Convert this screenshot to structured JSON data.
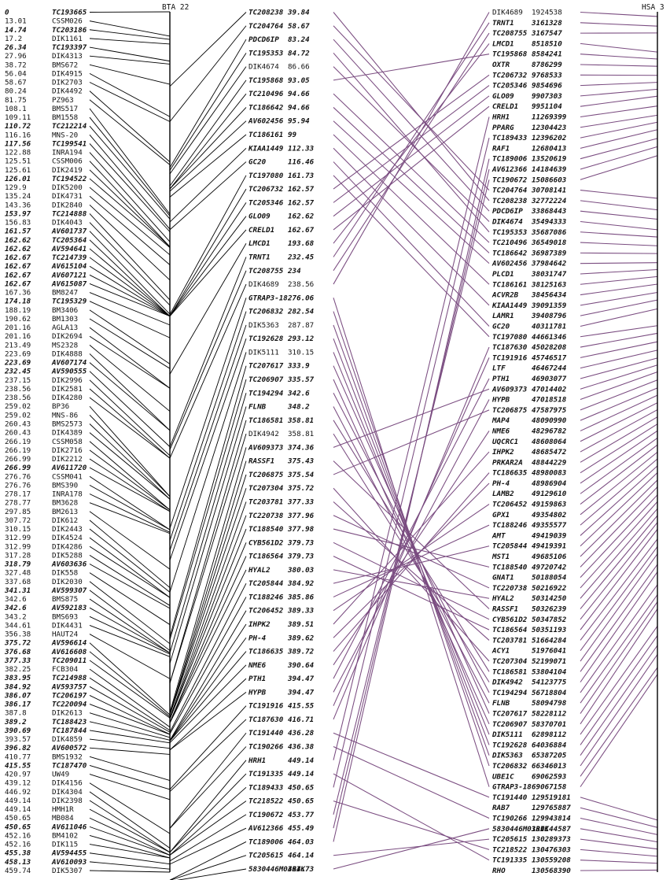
{
  "headers": {
    "bta22": "BTA 22",
    "hsa3": "HSA 3"
  },
  "col1": [
    [
      "0",
      "TC193665",
      1
    ],
    [
      "13.01",
      "CSSM026",
      0
    ],
    [
      "14.74",
      "TC203186",
      1
    ],
    [
      "17.2",
      "DIK1161",
      0
    ],
    [
      "26.34",
      "TC193397",
      1
    ],
    [
      "27.96",
      "DIK4313",
      0
    ],
    [
      "38.72",
      "BMS672",
      0
    ],
    [
      "56.04",
      "DIK4915",
      0
    ],
    [
      "58.67",
      "DIK2703",
      0
    ],
    [
      "80.24",
      "DIK4492",
      0
    ],
    [
      "81.75",
      "PZ963",
      0
    ],
    [
      "108.1",
      "BMS517",
      0
    ],
    [
      "109.11",
      "BM1558",
      0
    ],
    [
      "110.72",
      "TC212214",
      1
    ],
    [
      "116.16",
      "MNS-20",
      0
    ],
    [
      "117.56",
      "TC199541",
      1
    ],
    [
      "122.88",
      "INRA194",
      0
    ],
    [
      "125.51",
      "CSSM006",
      0
    ],
    [
      "125.61",
      "DIK2419",
      0
    ],
    [
      "126.01",
      "TC194522",
      1
    ],
    [
      "129.9",
      "DIK5200",
      0
    ],
    [
      "135.24",
      "DIK4731",
      0
    ],
    [
      "143.36",
      "DIK2840",
      0
    ],
    [
      "153.97",
      "TC214888",
      1
    ],
    [
      "156.83",
      "DIK4043",
      0
    ],
    [
      "161.57",
      "AV601737",
      1
    ],
    [
      "162.62",
      "TC205364",
      1
    ],
    [
      "162.62",
      "AV594641",
      1
    ],
    [
      "162.67",
      "TC214739",
      1
    ],
    [
      "162.67",
      "AV615104",
      1
    ],
    [
      "162.67",
      "AV607121",
      1
    ],
    [
      "162.67",
      "AV615087",
      1
    ],
    [
      "167.36",
      "BM8247",
      0
    ],
    [
      "174.18",
      "TC195329",
      1
    ],
    [
      "188.19",
      "BM3406",
      0
    ],
    [
      "190.62",
      "BM1303",
      0
    ],
    [
      "201.16",
      "AGLA13",
      0
    ],
    [
      "201.16",
      "DIK2694",
      0
    ],
    [
      "213.49",
      "MS2328",
      0
    ],
    [
      "223.69",
      "DIK4888",
      0
    ],
    [
      "223.69",
      "AV607174",
      1
    ],
    [
      "232.45",
      "AV590555",
      1
    ],
    [
      "237.15",
      "DIK2996",
      0
    ],
    [
      "238.56",
      "DIK2581",
      0
    ],
    [
      "238.56",
      "DIK4280",
      0
    ],
    [
      "259.02",
      "BP36",
      0
    ],
    [
      "259.02",
      "MNS-86",
      0
    ],
    [
      "260.43",
      "BMS2573",
      0
    ],
    [
      "260.43",
      "DIK4389",
      0
    ],
    [
      "266.19",
      "CSSM058",
      0
    ],
    [
      "266.19",
      "DIK2716",
      0
    ],
    [
      "266.99",
      "DIK2212",
      0
    ],
    [
      "266.99",
      "AV611720",
      1
    ],
    [
      "276.76",
      "CSSM041",
      0
    ],
    [
      "276.76",
      "BMS390",
      0
    ],
    [
      "278.17",
      "INRA178",
      0
    ],
    [
      "278.77",
      "BM3628",
      0
    ],
    [
      "297.85",
      "BM2613",
      0
    ],
    [
      "307.72",
      "DIK612",
      0
    ],
    [
      "310.15",
      "DIK2443",
      0
    ],
    [
      "312.99",
      "DIK4524",
      0
    ],
    [
      "312.99",
      "DIK4286",
      0
    ],
    [
      "317.28",
      "DIK5288",
      0
    ],
    [
      "318.79",
      "AV603636",
      1
    ],
    [
      "327.48",
      "DIK558",
      0
    ],
    [
      "337.68",
      "DIK2030",
      0
    ],
    [
      "341.31",
      "AV599307",
      1
    ],
    [
      "342.6",
      "BMS875",
      0
    ],
    [
      "342.6",
      "AV592183",
      1
    ],
    [
      "343.2",
      "BMS693",
      0
    ],
    [
      "344.61",
      "DIK4431",
      0
    ],
    [
      "356.38",
      "HAUT24",
      0
    ],
    [
      "375.72",
      "AV596614",
      1
    ],
    [
      "376.68",
      "AV616608",
      1
    ],
    [
      "377.33",
      "TC209011",
      1
    ],
    [
      "382.25",
      "FCB304",
      0
    ],
    [
      "383.95",
      "TC214988",
      1
    ],
    [
      "384.92",
      "AV593757",
      1
    ],
    [
      "386.07",
      "TC206197",
      1
    ],
    [
      "386.17",
      "TC220094",
      1
    ],
    [
      "387.8",
      "DIK2613",
      0
    ],
    [
      "389.2",
      "TC188423",
      1
    ],
    [
      "390.69",
      "TC187844",
      1
    ],
    [
      "393.57",
      "DIK4859",
      0
    ],
    [
      "396.82",
      "AV600572",
      1
    ],
    [
      "410.77",
      "BMS1932",
      0
    ],
    [
      "415.55",
      "TC187470",
      1
    ],
    [
      "420.97",
      "UW49",
      0
    ],
    [
      "439.12",
      "DIK4156",
      0
    ],
    [
      "446.92",
      "DIK4304",
      0
    ],
    [
      "449.14",
      "DIK2398",
      0
    ],
    [
      "449.14",
      "HMH1R",
      0
    ],
    [
      "450.65",
      "MB084",
      0
    ],
    [
      "450.65",
      "AV611046",
      1
    ],
    [
      "452.16",
      "BM4102",
      0
    ],
    [
      "452.16",
      "DIK115",
      0
    ],
    [
      "455.38",
      "AV594455",
      1
    ],
    [
      "458.13",
      "AV610093",
      1
    ],
    [
      "459.74",
      "DIK5307",
      0
    ]
  ],
  "col2": [
    [
      "TC208238",
      "39.84",
      1
    ],
    [
      "TC204764",
      "58.67",
      1
    ],
    [
      "PDCD6IP",
      "83.24",
      1
    ],
    [
      "TC195353",
      "84.72",
      1
    ],
    [
      "DIK4674",
      "86.66",
      0
    ],
    [
      "TC195868",
      "93.05",
      1
    ],
    [
      "TC210496",
      "94.66",
      1
    ],
    [
      "TC186642",
      "94.66",
      1
    ],
    [
      "AV602456",
      "95.94",
      1
    ],
    [
      "TC186161",
      "99",
      1
    ],
    [
      "KIAA1449",
      "112.33",
      1
    ],
    [
      "GC20",
      "116.46",
      1
    ],
    [
      "TC197080",
      "161.73",
      1
    ],
    [
      "TC206732",
      "162.57",
      1
    ],
    [
      "TC205346",
      "162.57",
      1
    ],
    [
      "GLO09",
      "162.62",
      1
    ],
    [
      "CRELD1",
      "162.67",
      1
    ],
    [
      "LMCD1",
      "193.68",
      1
    ],
    [
      "TRNT1",
      "232.45",
      1
    ],
    [
      "TC208755",
      "234",
      1
    ],
    [
      "DIK4689",
      "238.56",
      0
    ],
    [
      "GTRAP3-18",
      "276.06",
      1
    ],
    [
      "TC206832",
      "282.54",
      1
    ],
    [
      "DIK5363",
      "287.87",
      0
    ],
    [
      "TC192628",
      "293.12",
      1
    ],
    [
      "DIK5111",
      "310.15",
      0
    ],
    [
      "TC207617",
      "333.9",
      1
    ],
    [
      "TC206907",
      "335.57",
      1
    ],
    [
      "TC194294",
      "342.6",
      1
    ],
    [
      "FLNB",
      "348.2",
      1
    ],
    [
      "TC186581",
      "358.81",
      1
    ],
    [
      "DIK4942",
      "358.81",
      0
    ],
    [
      "AV609373",
      "374.36",
      1
    ],
    [
      "RASSF1",
      "375.43",
      1
    ],
    [
      "TC206875",
      "375.54",
      1
    ],
    [
      "TC207304",
      "375.72",
      1
    ],
    [
      "TC203781",
      "377.33",
      1
    ],
    [
      "TC220738",
      "377.96",
      1
    ],
    [
      "TC188540",
      "377.98",
      1
    ],
    [
      "CYB561D2",
      "379.73",
      1
    ],
    [
      "TC186564",
      "379.73",
      1
    ],
    [
      "HYAL2",
      "380.03",
      1
    ],
    [
      "TC205844",
      "384.92",
      1
    ],
    [
      "TC188246",
      "385.86",
      1
    ],
    [
      "TC206452",
      "389.33",
      1
    ],
    [
      "IHPK2",
      "389.51",
      1
    ],
    [
      "PH-4",
      "389.62",
      1
    ],
    [
      "TC186635",
      "389.72",
      1
    ],
    [
      "NME6",
      "390.64",
      1
    ],
    [
      "PTH1",
      "394.47",
      1
    ],
    [
      "HYPB",
      "394.47",
      1
    ],
    [
      "TC191916",
      "415.55",
      1
    ],
    [
      "TC187630",
      "416.71",
      1
    ],
    [
      "TC191440",
      "436.28",
      1
    ],
    [
      "TC190266",
      "436.38",
      1
    ],
    [
      "HRH1",
      "449.14",
      1
    ],
    [
      "TC191335",
      "449.14",
      1
    ],
    [
      "TC189433",
      "450.65",
      1
    ],
    [
      "TC218522",
      "450.65",
      1
    ],
    [
      "TC190672",
      "453.77",
      1
    ],
    [
      "AV612366",
      "455.49",
      1
    ],
    [
      "TC189006",
      "464.03",
      1
    ],
    [
      "TC205615",
      "464.14",
      1
    ],
    [
      "5830446M03RIK",
      "464.73",
      1
    ]
  ],
  "col3": [
    [
      "DIK4689",
      "1924538",
      0
    ],
    [
      "TRNT1",
      "3161328",
      1
    ],
    [
      "TC208755",
      "3167547",
      1
    ],
    [
      "LMCD1",
      "8518510",
      1
    ],
    [
      "TC195868",
      "8584241",
      1
    ],
    [
      "OXTR",
      "8786299",
      1
    ],
    [
      "TC206732",
      "9768533",
      1
    ],
    [
      "TC205346",
      "9854696",
      1
    ],
    [
      "GLO09",
      "9907303",
      1
    ],
    [
      "CRELD1",
      "9951104",
      1
    ],
    [
      "HRH1",
      "11269399",
      1
    ],
    [
      "PPARG",
      "12304423",
      1
    ],
    [
      "TC189433",
      "12396202",
      1
    ],
    [
      "RAF1",
      "12680413",
      1
    ],
    [
      "TC189006",
      "13520619",
      1
    ],
    [
      "AV612366",
      "14184639",
      1
    ],
    [
      "TC190672",
      "15086603",
      1
    ],
    [
      "TC204764",
      "30708141",
      1
    ],
    [
      "TC208238",
      "32772224",
      1
    ],
    [
      "PDCD6IP",
      "33868443",
      1
    ],
    [
      "DIK4674",
      "35494333",
      1
    ],
    [
      "TC195353",
      "35687086",
      1
    ],
    [
      "TC210496",
      "36549018",
      1
    ],
    [
      "TC186642",
      "36987389",
      1
    ],
    [
      "AV602456",
      "37984642",
      1
    ],
    [
      "PLCD1",
      "38031747",
      1
    ],
    [
      "TC186161",
      "38125163",
      1
    ],
    [
      "ACVR2B",
      "38456434",
      1
    ],
    [
      "KIAA1449",
      "39091359",
      1
    ],
    [
      "LAMR1",
      "39408796",
      1
    ],
    [
      "GC20",
      "40311781",
      1
    ],
    [
      "TC197080",
      "44661346",
      1
    ],
    [
      "TC187630",
      "45028208",
      1
    ],
    [
      "TC191916",
      "45746517",
      1
    ],
    [
      "LTF",
      "46467244",
      1
    ],
    [
      "PTH1",
      "46903077",
      1
    ],
    [
      "AV609373",
      "47014402",
      1
    ],
    [
      "HYPB",
      "47018518",
      1
    ],
    [
      "TC206875",
      "47587975",
      1
    ],
    [
      "MAP4",
      "48090990",
      1
    ],
    [
      "NME6",
      "48296782",
      1
    ],
    [
      "UQCRC1",
      "48608064",
      1
    ],
    [
      "IHPK2",
      "48685472",
      1
    ],
    [
      "PRKAR2A",
      "48844229",
      1
    ],
    [
      "TC186635",
      "48980083",
      1
    ],
    [
      "PH-4",
      "48986904",
      1
    ],
    [
      "LAMB2",
      "49129610",
      1
    ],
    [
      "TC206452",
      "49159863",
      1
    ],
    [
      "GPX1",
      "49354802",
      1
    ],
    [
      "TC188246",
      "49355577",
      1
    ],
    [
      "AMT",
      "49419039",
      1
    ],
    [
      "TC205844",
      "49419391",
      1
    ],
    [
      "MST1",
      "49685106",
      1
    ],
    [
      "TC188540",
      "49720742",
      1
    ],
    [
      "GNAT1",
      "50188054",
      1
    ],
    [
      "TC220738",
      "50216922",
      1
    ],
    [
      "HYAL2",
      "50314250",
      1
    ],
    [
      "RASSF1",
      "50326239",
      1
    ],
    [
      "CYB561D2",
      "50347852",
      1
    ],
    [
      "TC186564",
      "50351193",
      1
    ],
    [
      "TC203781",
      "51664284",
      1
    ],
    [
      "ACY1",
      "51976041",
      1
    ],
    [
      "TC207304",
      "52199071",
      1
    ],
    [
      "TC186581",
      "53804104",
      1
    ],
    [
      "DIK4942",
      "54123775",
      1
    ],
    [
      "TC194294",
      "56718804",
      1
    ],
    [
      "FLNB",
      "58094798",
      1
    ],
    [
      "TC207617",
      "58228112",
      1
    ],
    [
      "TC206907",
      "58370701",
      1
    ],
    [
      "DIK5111",
      "62898112",
      1
    ],
    [
      "TC192628",
      "64036884",
      1
    ],
    [
      "DIK5363",
      "65387205",
      1
    ],
    [
      "TC206832",
      "66346013",
      1
    ],
    [
      "UBE1C",
      "69062593",
      1
    ],
    [
      "GTRAP3-18",
      "69067158",
      1
    ],
    [
      "TC191440",
      "129519181",
      1
    ],
    [
      "RAB7",
      "129765887",
      1
    ],
    [
      "TC190266",
      "129943814",
      1
    ],
    [
      "5830446M03RIK",
      "130144587",
      1
    ],
    [
      "TC205615",
      "130289373",
      1
    ],
    [
      "TC218522",
      "130476303",
      1
    ],
    [
      "TC191335",
      "130559208",
      1
    ],
    [
      "RHO",
      "130568390",
      1
    ]
  ]
}
